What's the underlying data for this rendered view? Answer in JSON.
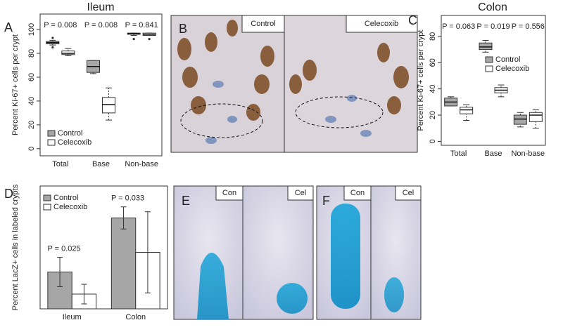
{
  "chart_data": [
    {
      "type": "box",
      "title": "Ileum",
      "y_label": "Percent Ki-67+ cells per crypt",
      "categories": [
        "Total",
        "Base",
        "Non-base"
      ],
      "annotations": [
        "P = 0.008",
        "P = 0.008",
        "P = 0.841"
      ],
      "ylim": [
        -6,
        113
      ],
      "yticks": [
        0,
        20,
        40,
        60,
        80,
        100
      ],
      "legend": "bottom-left",
      "series": [
        {
          "name": "Control",
          "color": "#a6a6a6",
          "values": [
            [
              87,
              88,
              89,
              90,
              91
            ],
            [
              63,
              64,
              69,
              74,
              74
            ],
            [
              95,
              96,
              96.5,
              97,
              97
            ]
          ],
          "outliers": [
            [
              93,
              85
            ],
            [],
            [
              92
            ]
          ]
        },
        {
          "name": "Celecoxib",
          "color": "#ffffff",
          "values": [
            [
              78,
              79,
              80,
              82,
              84
            ],
            [
              24,
              30,
              37,
              43,
              51
            ],
            [
              95,
              95,
              96,
              97,
              97
            ]
          ],
          "outliers": [
            [],
            [],
            [
              92
            ]
          ]
        }
      ]
    },
    {
      "type": "box",
      "title": "Colon",
      "y_label": "Percent Ki-67+ cells per crypt",
      "categories": [
        "Total",
        "Base",
        "Non-base"
      ],
      "annotations": [
        "P = 0.063",
        "P = 0.019",
        "P = 0.556"
      ],
      "ylim": [
        -3,
        96
      ],
      "yticks": [
        0,
        20,
        40,
        60,
        80
      ],
      "legend": "right",
      "series": [
        {
          "name": "Control",
          "color": "#a6a6a6",
          "values": [
            [
              27,
              27,
              30,
              33,
              34
            ],
            [
              68,
              70,
              72,
              75,
              77
            ],
            [
              11,
              13,
              17,
              20,
              22
            ]
          ],
          "outliers": [
            [],
            [],
            []
          ]
        },
        {
          "name": "Celecoxib",
          "color": "#ffffff",
          "values": [
            [
              16,
              21,
              24,
              26,
              28
            ],
            [
              34,
              37,
              39,
              41,
              43
            ],
            [
              10,
              15,
              20,
              22,
              24
            ]
          ],
          "outliers": [
            [],
            [],
            []
          ]
        }
      ]
    },
    {
      "type": "bar",
      "y_label": "Percent LacZ+ cells in labeled crypts",
      "categories": [
        "Ileum",
        "Colon"
      ],
      "annotations": [
        "P = 0.025",
        "P = 0.033"
      ],
      "ylim": [
        0,
        100
      ],
      "legend": "top-left",
      "series": [
        {
          "name": "Control",
          "color": "#a6a6a6",
          "values": [
            30,
            74
          ],
          "errors": [
            12,
            9
          ]
        },
        {
          "name": "Celecoxib",
          "color": "#ffffff",
          "values": [
            12,
            46
          ],
          "errors": [
            8,
            33
          ]
        }
      ]
    }
  ],
  "panels": {
    "letters": [
      "A",
      "B",
      "C",
      "D",
      "E",
      "F"
    ],
    "B": [
      "Control",
      "Celecoxib"
    ],
    "E": [
      "Con",
      "Cel"
    ],
    "F": [
      "Con",
      "Cel"
    ]
  }
}
